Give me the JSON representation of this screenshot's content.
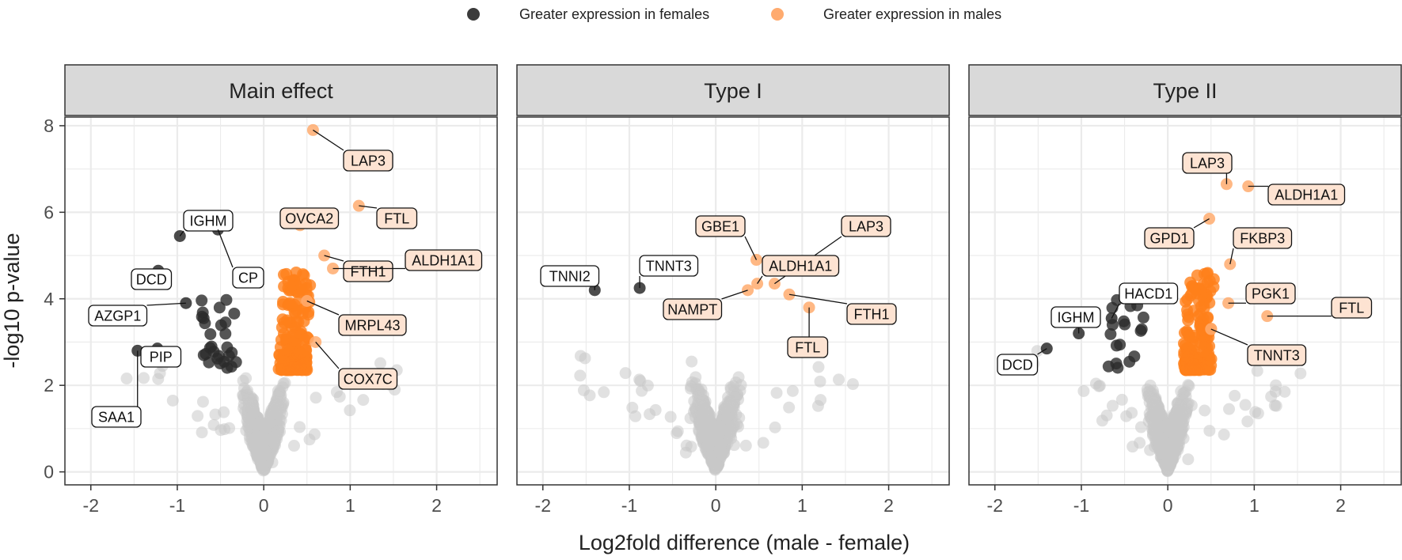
{
  "chart_data": {
    "type": "scatter",
    "title": "",
    "xlabel": "Log2fold difference (male - female)",
    "ylabel": "-log10 p-value",
    "xlim": [
      -2.3,
      2.7
    ],
    "ylim": [
      -0.3,
      8.2
    ],
    "x_ticks": [
      -2,
      -1,
      0,
      1,
      2
    ],
    "y_ticks": [
      0,
      2,
      4,
      6,
      8
    ],
    "grid": true,
    "legend_position": "top",
    "legend": [
      {
        "name": "Greater expression in females",
        "color": "#3b3b3b"
      },
      {
        "name": "Greater expression in males",
        "color": "#ffab6f"
      }
    ],
    "colors": {
      "female": "#2b2b2b",
      "male": "#ff7f1a",
      "male_labeled": "#ffab6f",
      "nonsig": "#c8c8c8",
      "label_male_fill": "#fde3d2",
      "strip": "#d9d9d9"
    },
    "panels": [
      {
        "title": "Main effect",
        "labeled": [
          {
            "gene": "LAP3",
            "x": 0.57,
            "y": 7.9,
            "group": "male"
          },
          {
            "gene": "FTL",
            "x": 1.1,
            "y": 6.15,
            "group": "male"
          },
          {
            "gene": "OVCA2",
            "x": 0.42,
            "y": 5.7,
            "group": "male"
          },
          {
            "gene": "FTH1",
            "x": 0.7,
            "y": 5.0,
            "group": "male"
          },
          {
            "gene": "ALDH1A1",
            "x": 0.8,
            "y": 4.7,
            "group": "male"
          },
          {
            "gene": "MRPL43",
            "x": 0.5,
            "y": 3.95,
            "group": "male"
          },
          {
            "gene": "COX7C",
            "x": 0.6,
            "y": 3.0,
            "group": "male"
          },
          {
            "gene": "IGHM",
            "x": -0.97,
            "y": 5.45,
            "group": "female"
          },
          {
            "gene": "CP",
            "x": -0.53,
            "y": 5.6,
            "group": "female"
          },
          {
            "gene": "DCD",
            "x": -1.22,
            "y": 4.65,
            "group": "female"
          },
          {
            "gene": "AZGP1",
            "x": -0.9,
            "y": 3.9,
            "group": "female"
          },
          {
            "gene": "PIP",
            "x": -1.23,
            "y": 2.85,
            "group": "female"
          },
          {
            "gene": "SAA1",
            "x": -1.46,
            "y": 2.8,
            "group": "female"
          }
        ]
      },
      {
        "title": "Type I",
        "labeled": [
          {
            "gene": "TNNI2",
            "x": -1.4,
            "y": 4.2,
            "group": "female"
          },
          {
            "gene": "TNNT3",
            "x": -0.88,
            "y": 4.25,
            "group": "female"
          },
          {
            "gene": "GBE1",
            "x": 0.47,
            "y": 4.9,
            "group": "male"
          },
          {
            "gene": "LAP3",
            "x": 0.68,
            "y": 4.35,
            "group": "male"
          },
          {
            "gene": "ALDH1A1",
            "x": 0.48,
            "y": 4.35,
            "group": "male"
          },
          {
            "gene": "NAMPT",
            "x": 0.37,
            "y": 4.2,
            "group": "male"
          },
          {
            "gene": "FTH1",
            "x": 0.85,
            "y": 4.1,
            "group": "male"
          },
          {
            "gene": "FTL",
            "x": 1.08,
            "y": 3.8,
            "group": "male"
          }
        ]
      },
      {
        "title": "Type II",
        "labeled": [
          {
            "gene": "LAP3",
            "x": 0.68,
            "y": 6.65,
            "group": "male"
          },
          {
            "gene": "ALDH1A1",
            "x": 0.93,
            "y": 6.6,
            "group": "male"
          },
          {
            "gene": "GPD1",
            "x": 0.48,
            "y": 5.85,
            "group": "male"
          },
          {
            "gene": "FKBP3",
            "x": 0.72,
            "y": 4.8,
            "group": "male"
          },
          {
            "gene": "PGK1",
            "x": 0.7,
            "y": 3.9,
            "group": "male"
          },
          {
            "gene": "FTL",
            "x": 1.15,
            "y": 3.6,
            "group": "male"
          },
          {
            "gene": "TNNT3",
            "x": 0.5,
            "y": 3.3,
            "group": "male"
          },
          {
            "gene": "HACD1",
            "x": -0.65,
            "y": 3.55,
            "group": "female"
          },
          {
            "gene": "IGHM",
            "x": -1.03,
            "y": 3.2,
            "group": "female"
          },
          {
            "gene": "DCD",
            "x": -1.4,
            "y": 2.85,
            "group": "female"
          }
        ]
      }
    ]
  }
}
